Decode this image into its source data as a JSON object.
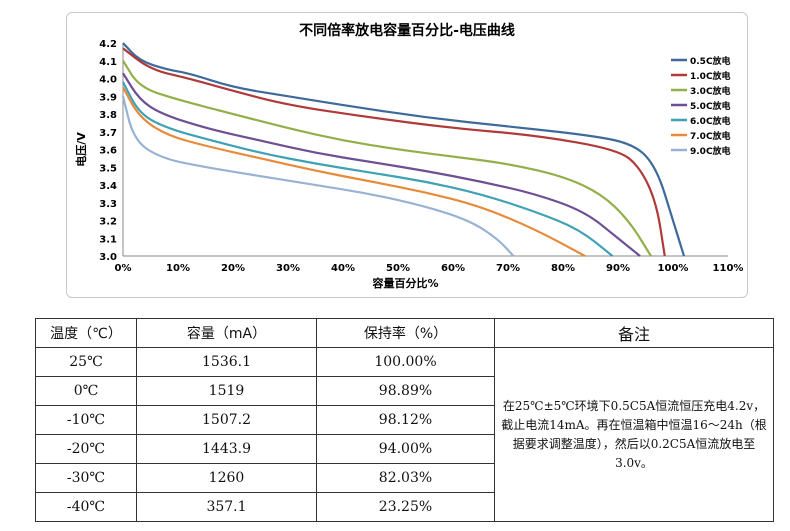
{
  "chart_data": {
    "type": "line",
    "title": "不同倍率放电容量百分比-电压曲线",
    "xlabel": "容量百分比%",
    "ylabel": "电压/V",
    "xlim": [
      0,
      110
    ],
    "ylim": [
      3.0,
      4.2
    ],
    "xticks": [
      "0%",
      "10%",
      "20%",
      "30%",
      "40%",
      "50%",
      "60%",
      "70%",
      "80%",
      "90%",
      "100%",
      "110%"
    ],
    "yticks": [
      "3.0",
      "3.1",
      "3.2",
      "3.3",
      "3.4",
      "3.5",
      "3.6",
      "3.7",
      "3.8",
      "3.9",
      "4.0",
      "4.1",
      "4.2"
    ],
    "legend": "right",
    "series": [
      {
        "name": "0.5C放电",
        "color": "#3d6a9a",
        "x": [
          0,
          3,
          8,
          12,
          20,
          30,
          40,
          55,
          70,
          85,
          93,
          97,
          100,
          102
        ],
        "y": [
          4.2,
          4.1,
          4.05,
          4.03,
          3.95,
          3.9,
          3.85,
          3.78,
          3.73,
          3.68,
          3.63,
          3.5,
          3.2,
          3.0
        ]
      },
      {
        "name": "1.0C放电",
        "color": "#b03a3a",
        "x": [
          0,
          5,
          12,
          20,
          30,
          45,
          60,
          75,
          90,
          94,
          97,
          98.5
        ],
        "y": [
          4.17,
          4.05,
          4.0,
          3.93,
          3.85,
          3.78,
          3.72,
          3.68,
          3.6,
          3.5,
          3.3,
          3.0
        ]
      },
      {
        "name": "3.0C放电",
        "color": "#92b04a",
        "x": [
          0,
          3,
          10,
          20,
          30,
          40,
          50,
          60,
          70,
          80,
          87,
          92,
          96
        ],
        "y": [
          4.1,
          3.95,
          3.88,
          3.8,
          3.72,
          3.65,
          3.6,
          3.56,
          3.52,
          3.45,
          3.35,
          3.2,
          3.0
        ]
      },
      {
        "name": "5.0C放电",
        "color": "#6e4f94",
        "x": [
          0,
          3,
          7,
          15,
          25,
          35,
          45,
          55,
          65,
          75,
          84,
          90,
          94
        ],
        "y": [
          4.03,
          3.88,
          3.8,
          3.72,
          3.65,
          3.58,
          3.53,
          3.48,
          3.42,
          3.35,
          3.25,
          3.1,
          3.0
        ]
      },
      {
        "name": "6.0C放电",
        "color": "#3fa2b4",
        "x": [
          0,
          3,
          8,
          15,
          25,
          35,
          45,
          55,
          65,
          75,
          83,
          89
        ],
        "y": [
          3.98,
          3.8,
          3.72,
          3.66,
          3.58,
          3.52,
          3.47,
          3.42,
          3.35,
          3.25,
          3.15,
          3.0
        ]
      },
      {
        "name": "7.0C放电",
        "color": "#e88a3a",
        "x": [
          0,
          3,
          8,
          15,
          25,
          35,
          45,
          55,
          65,
          75,
          84
        ],
        "y": [
          3.95,
          3.78,
          3.68,
          3.62,
          3.55,
          3.48,
          3.42,
          3.36,
          3.28,
          3.15,
          3.0
        ]
      },
      {
        "name": "9.0C放电",
        "color": "#98b2d4",
        "x": [
          0,
          2,
          7,
          15,
          25,
          35,
          45,
          55,
          63,
          68,
          71
        ],
        "y": [
          3.9,
          3.65,
          3.55,
          3.5,
          3.45,
          3.4,
          3.35,
          3.28,
          3.2,
          3.1,
          3.0
        ]
      }
    ]
  },
  "table": {
    "headers": [
      "温度（℃）",
      "容量（mA）",
      "保持率（%）",
      "备注"
    ],
    "rows": [
      [
        "25℃",
        "1536.1",
        "100.00%"
      ],
      [
        "0℃",
        "1519",
        "98.89%"
      ],
      [
        "-10℃",
        "1507.2",
        "98.12%"
      ],
      [
        "-20℃",
        "1443.9",
        "94.00%"
      ],
      [
        "-30℃",
        "1260",
        "82.03%"
      ],
      [
        "-40℃",
        "357.1",
        "23.25%"
      ]
    ],
    "note": "在25℃±5℃环境下0.5C5A恒流恒压充电4.2v，截止电流14mA。再在恒温箱中恒温16～24h（根据要求调整温度），然后以0.2C5A恒流放电至3.0v。"
  }
}
